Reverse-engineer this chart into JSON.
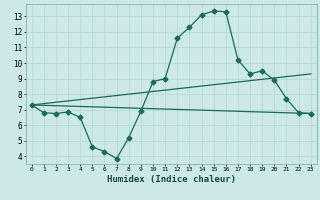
{
  "title": "",
  "xlabel": "Humidex (Indice chaleur)",
  "bg_color": "#cce8e8",
  "line_color": "#1a6b5a",
  "grid_color": "#b8d8d8",
  "xlim": [
    -0.5,
    23.5
  ],
  "ylim": [
    3.5,
    13.8
  ],
  "xticks": [
    0,
    1,
    2,
    3,
    4,
    5,
    6,
    7,
    8,
    9,
    10,
    11,
    12,
    13,
    14,
    15,
    16,
    17,
    18,
    19,
    20,
    21,
    22,
    23
  ],
  "yticks": [
    4,
    5,
    6,
    7,
    8,
    9,
    10,
    11,
    12,
    13
  ],
  "line1_x": [
    0,
    1,
    2,
    3,
    4,
    5,
    6,
    7,
    8,
    9,
    10,
    11,
    12,
    13,
    14,
    15,
    16,
    17,
    18,
    19,
    20,
    21,
    22,
    23
  ],
  "line1_y": [
    7.3,
    6.8,
    6.75,
    6.85,
    6.5,
    4.6,
    4.3,
    3.85,
    5.2,
    6.9,
    8.8,
    9.0,
    11.6,
    12.3,
    13.1,
    13.35,
    13.3,
    10.2,
    9.3,
    9.5,
    8.9,
    7.7,
    6.8,
    6.75
  ],
  "line2_x": [
    0,
    23
  ],
  "line2_y": [
    7.3,
    9.3
  ],
  "line3_x": [
    0,
    23
  ],
  "line3_y": [
    7.3,
    6.75
  ],
  "markersize": 2.5,
  "linewidth": 0.9
}
